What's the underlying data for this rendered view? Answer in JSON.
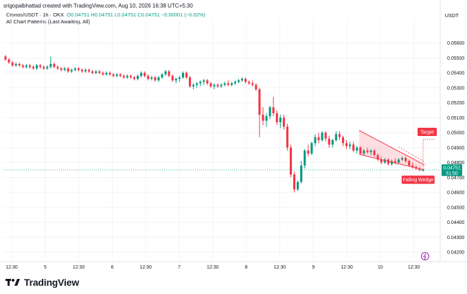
{
  "header": {
    "creator_line": "srigopalbhattad created with TradingView.com, Aug 10, 2026 16:38 UTC+5:30",
    "symbol_line": "Cronos/USDT · 1h · OKX",
    "ohlc_line": "O0.04751  H0.04751  L0.04751  C0.04751  −0.00001 (−0.02%)",
    "indicator_line": "All Chart Patterns (Last Awaiting, All)",
    "currency": "USDT"
  },
  "footer": {
    "brand": "TradingView"
  },
  "colors": {
    "up": "#089981",
    "down": "#f23645",
    "pattern": "#f23645",
    "price_line": "#089981"
  },
  "chart_data": {
    "type": "candlestick",
    "title": "Cronos/USDT · 1h · OKX",
    "y_range": [
      0.0415,
      0.0575
    ],
    "y_ticks": [
      "0.05600",
      "0.05500",
      "0.05400",
      "0.05300",
      "0.05200",
      "0.05100",
      "0.05000",
      "0.04900",
      "0.04800",
      "0.04700",
      "0.04600",
      "0.04500",
      "0.04400",
      "0.04300",
      "0.04200"
    ],
    "x_tick_labels": [
      "12:30",
      "5",
      "12:30",
      "6",
      "12:30",
      "7",
      "12:30",
      "8",
      "12:30",
      "9",
      "12:30",
      "10",
      "12:30"
    ],
    "grid": true,
    "current_price": {
      "value": "0.04751",
      "countdown": "51:50"
    },
    "annotations": [
      {
        "label": "Falling Wedge"
      },
      {
        "label": "Target"
      }
    ],
    "candles": [
      [
        0.0551,
        0.0552,
        0.0548,
        0.0549
      ],
      [
        0.0549,
        0.055,
        0.0546,
        0.0547
      ],
      [
        0.0547,
        0.0548,
        0.0544,
        0.0545
      ],
      [
        0.0545,
        0.0547,
        0.0544,
        0.0546
      ],
      [
        0.0546,
        0.0547,
        0.0544,
        0.0545
      ],
      [
        0.0545,
        0.0546,
        0.0543,
        0.0544
      ],
      [
        0.0544,
        0.0546,
        0.0543,
        0.0545
      ],
      [
        0.0545,
        0.0546,
        0.0543,
        0.0544
      ],
      [
        0.0544,
        0.0545,
        0.0542,
        0.0543
      ],
      [
        0.0543,
        0.0546,
        0.0542,
        0.0545
      ],
      [
        0.0545,
        0.0546,
        0.0543,
        0.0544
      ],
      [
        0.0544,
        0.0545,
        0.0542,
        0.0543
      ],
      [
        0.0543,
        0.0545,
        0.0542,
        0.0544
      ],
      [
        0.0544,
        0.0551,
        0.0543,
        0.0546
      ],
      [
        0.0546,
        0.0547,
        0.0543,
        0.0544
      ],
      [
        0.0544,
        0.0545,
        0.0542,
        0.0543
      ],
      [
        0.0543,
        0.0544,
        0.0541,
        0.0542
      ],
      [
        0.0542,
        0.0544,
        0.0541,
        0.0543
      ],
      [
        0.0543,
        0.0544,
        0.054,
        0.0541
      ],
      [
        0.0541,
        0.0543,
        0.054,
        0.0542
      ],
      [
        0.0542,
        0.0544,
        0.0541,
        0.0543
      ],
      [
        0.0543,
        0.0544,
        0.0541,
        0.0542
      ],
      [
        0.0542,
        0.0543,
        0.054,
        0.0541
      ],
      [
        0.0541,
        0.0543,
        0.054,
        0.0542
      ],
      [
        0.0542,
        0.0543,
        0.054,
        0.0541
      ],
      [
        0.0541,
        0.0542,
        0.0539,
        0.054
      ],
      [
        0.054,
        0.0542,
        0.0539,
        0.0541
      ],
      [
        0.0541,
        0.0542,
        0.0539,
        0.054
      ],
      [
        0.054,
        0.0541,
        0.0538,
        0.0539
      ],
      [
        0.0539,
        0.0541,
        0.0538,
        0.054
      ],
      [
        0.054,
        0.0541,
        0.0538,
        0.0539
      ],
      [
        0.0539,
        0.054,
        0.0537,
        0.0538
      ],
      [
        0.0538,
        0.054,
        0.0537,
        0.0539
      ],
      [
        0.0539,
        0.054,
        0.0537,
        0.0538
      ],
      [
        0.0538,
        0.0539,
        0.0536,
        0.0537
      ],
      [
        0.0537,
        0.0539,
        0.0536,
        0.0538
      ],
      [
        0.0538,
        0.0539,
        0.0536,
        0.0537
      ],
      [
        0.0537,
        0.0538,
        0.0535,
        0.0536
      ],
      [
        0.0536,
        0.0539,
        0.0535,
        0.0538
      ],
      [
        0.0538,
        0.0541,
        0.0537,
        0.054
      ],
      [
        0.054,
        0.0541,
        0.0537,
        0.0538
      ],
      [
        0.0538,
        0.0539,
        0.0535,
        0.0536
      ],
      [
        0.0536,
        0.0538,
        0.0535,
        0.0537
      ],
      [
        0.0537,
        0.0538,
        0.0534,
        0.0535
      ],
      [
        0.0535,
        0.0538,
        0.0534,
        0.0537
      ],
      [
        0.0537,
        0.054,
        0.0536,
        0.0539
      ],
      [
        0.0539,
        0.0542,
        0.0538,
        0.0541
      ],
      [
        0.0541,
        0.0542,
        0.0537,
        0.0538
      ],
      [
        0.0538,
        0.0539,
        0.0534,
        0.0535
      ],
      [
        0.0535,
        0.0537,
        0.0533,
        0.0536
      ],
      [
        0.0536,
        0.0538,
        0.0534,
        0.0537
      ],
      [
        0.0537,
        0.0541,
        0.0536,
        0.054
      ],
      [
        0.054,
        0.0541,
        0.0536,
        0.0537
      ],
      [
        0.0537,
        0.0538,
        0.053,
        0.0531
      ],
      [
        0.0531,
        0.0533,
        0.0529,
        0.0532
      ],
      [
        0.0532,
        0.0534,
        0.053,
        0.0533
      ],
      [
        0.0533,
        0.0535,
        0.0531,
        0.0534
      ],
      [
        0.0534,
        0.0536,
        0.0532,
        0.0535
      ],
      [
        0.0535,
        0.0536,
        0.0532,
        0.0533
      ],
      [
        0.0533,
        0.0534,
        0.053,
        0.0531
      ],
      [
        0.0531,
        0.0533,
        0.0529,
        0.0532
      ],
      [
        0.0532,
        0.0533,
        0.053,
        0.0531
      ],
      [
        0.0531,
        0.0533,
        0.053,
        0.0532
      ],
      [
        0.0532,
        0.0534,
        0.0531,
        0.0533
      ],
      [
        0.0533,
        0.0535,
        0.0531,
        0.0532
      ],
      [
        0.0532,
        0.0534,
        0.0531,
        0.0533
      ],
      [
        0.0533,
        0.0535,
        0.0532,
        0.0534
      ],
      [
        0.0534,
        0.0536,
        0.0533,
        0.0535
      ],
      [
        0.0535,
        0.0537,
        0.0534,
        0.0536
      ],
      [
        0.0536,
        0.0537,
        0.0533,
        0.0534
      ],
      [
        0.0534,
        0.0535,
        0.0532,
        0.0533
      ],
      [
        0.0533,
        0.0535,
        0.0531,
        0.0532
      ],
      [
        0.0532,
        0.0533,
        0.0528,
        0.0529
      ],
      [
        0.0529,
        0.053,
        0.0497,
        0.0512
      ],
      [
        0.0512,
        0.0517,
        0.0505,
        0.0508
      ],
      [
        0.0508,
        0.0513,
        0.0504,
        0.0511
      ],
      [
        0.0511,
        0.0518,
        0.0509,
        0.0517
      ],
      [
        0.0517,
        0.0524,
        0.0511,
        0.0513
      ],
      [
        0.0513,
        0.0515,
        0.0505,
        0.0507
      ],
      [
        0.0507,
        0.0512,
        0.0503,
        0.051
      ],
      [
        0.051,
        0.0512,
        0.0502,
        0.0504
      ],
      [
        0.0504,
        0.0506,
        0.0488,
        0.049
      ],
      [
        0.049,
        0.0492,
        0.047,
        0.0472
      ],
      [
        0.0472,
        0.0474,
        0.046,
        0.0462
      ],
      [
        0.0462,
        0.0468,
        0.0461,
        0.0467
      ],
      [
        0.0467,
        0.0481,
        0.0466,
        0.0478
      ],
      [
        0.0478,
        0.0489,
        0.0476,
        0.0488
      ],
      [
        0.0488,
        0.0492,
        0.0484,
        0.0486
      ],
      [
        0.0486,
        0.0494,
        0.0485,
        0.0493
      ],
      [
        0.0493,
        0.0499,
        0.0491,
        0.0497
      ],
      [
        0.0497,
        0.05,
        0.0493,
        0.0495
      ],
      [
        0.0495,
        0.0501,
        0.0494,
        0.05
      ],
      [
        0.05,
        0.0501,
        0.0494,
        0.0496
      ],
      [
        0.0496,
        0.0498,
        0.049,
        0.0492
      ],
      [
        0.0492,
        0.0496,
        0.049,
        0.0495
      ],
      [
        0.0495,
        0.0501,
        0.0494,
        0.0499
      ],
      [
        0.0499,
        0.0501,
        0.0495,
        0.0497
      ],
      [
        0.0497,
        0.0498,
        0.0491,
        0.0493
      ],
      [
        0.0493,
        0.0495,
        0.0489,
        0.0491
      ],
      [
        0.0491,
        0.0494,
        0.0489,
        0.0492
      ],
      [
        0.0492,
        0.0494,
        0.0487,
        0.0488
      ],
      [
        0.0488,
        0.0491,
        0.0486,
        0.049
      ],
      [
        0.049,
        0.0491,
        0.0485,
        0.0486
      ],
      [
        0.0486,
        0.0489,
        0.0485,
        0.0488
      ],
      [
        0.0488,
        0.049,
        0.0486,
        0.0487
      ],
      [
        0.0487,
        0.0489,
        0.0485,
        0.0488
      ],
      [
        0.0488,
        0.0489,
        0.0484,
        0.0485
      ],
      [
        0.0485,
        0.0486,
        0.0481,
        0.0482
      ],
      [
        0.0482,
        0.0484,
        0.0479,
        0.048
      ],
      [
        0.048,
        0.0483,
        0.0479,
        0.0482
      ],
      [
        0.0482,
        0.0483,
        0.0478,
        0.0479
      ],
      [
        0.0479,
        0.0482,
        0.0478,
        0.0481
      ],
      [
        0.0481,
        0.0483,
        0.0479,
        0.048
      ],
      [
        0.048,
        0.0483,
        0.0479,
        0.0482
      ],
      [
        0.0482,
        0.0484,
        0.0481,
        0.0483
      ],
      [
        0.0483,
        0.0484,
        0.048,
        0.0481
      ],
      [
        0.0481,
        0.0482,
        0.0477,
        0.0478
      ],
      [
        0.0478,
        0.048,
        0.0476,
        0.0477
      ],
      [
        0.0477,
        0.0478,
        0.0475,
        0.0476
      ],
      [
        0.0476,
        0.0477,
        0.0474,
        0.0475
      ],
      [
        0.0475,
        0.0476,
        0.0474,
        0.0475
      ]
    ]
  }
}
